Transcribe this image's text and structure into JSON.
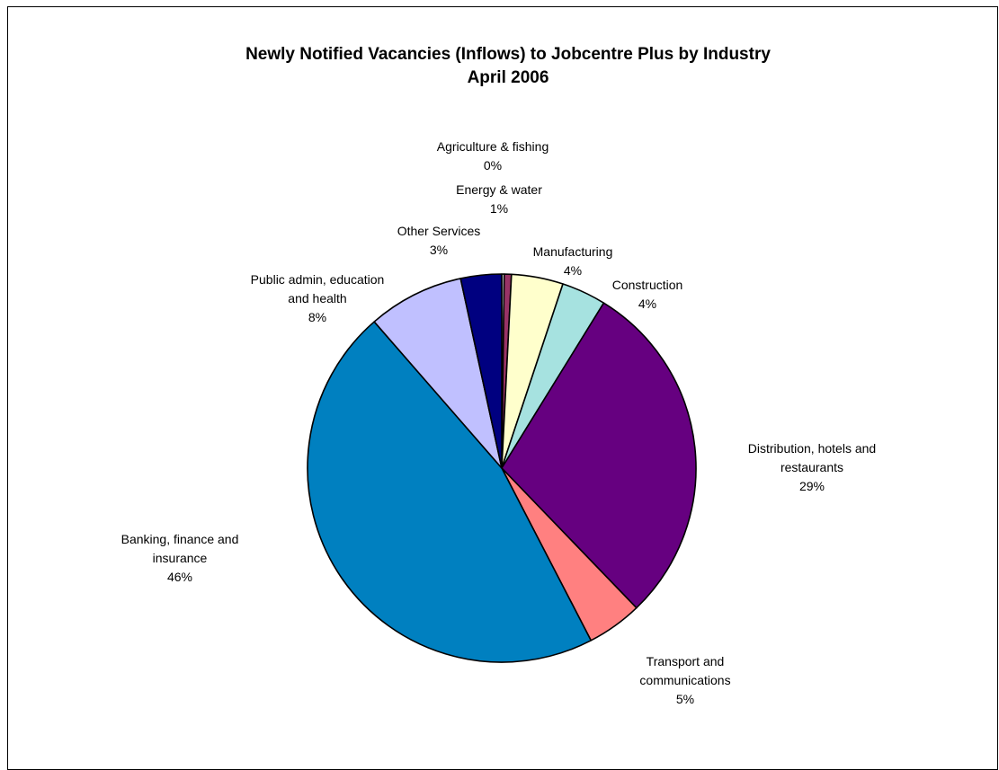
{
  "chart_data": {
    "type": "pie",
    "title": [
      "Newly Notified Vacancies (Inflows) to Jobcentre Plus by Industry",
      "April 2006"
    ],
    "slices": [
      {
        "label_lines": [
          "Agriculture & fishing"
        ],
        "percent_label": "0%",
        "value": 0.2,
        "color": "#FFFFFF"
      },
      {
        "label_lines": [
          "Energy & water"
        ],
        "percent_label": "1%",
        "value": 0.6,
        "color": "#993366"
      },
      {
        "label_lines": [
          "Manufacturing"
        ],
        "percent_label": "4%",
        "value": 4.3,
        "color": "#FFFFCC"
      },
      {
        "label_lines": [
          "Construction"
        ],
        "percent_label": "4%",
        "value": 3.7,
        "color": "#A6E2E0"
      },
      {
        "label_lines": [
          "Distribution, hotels and",
          "restaurants"
        ],
        "percent_label": "29%",
        "value": 29.0,
        "color": "#660080"
      },
      {
        "label_lines": [
          "Transport and",
          "communications"
        ],
        "percent_label": "5%",
        "value": 4.6,
        "color": "#FF8080"
      },
      {
        "label_lines": [
          "Banking, finance and",
          "insurance"
        ],
        "percent_label": "46%",
        "value": 46.2,
        "color": "#0080C0"
      },
      {
        "label_lines": [
          "Public admin, education",
          "and health"
        ],
        "percent_label": "8%",
        "value": 8.0,
        "color": "#C0C0FF"
      },
      {
        "label_lines": [
          "Other Services"
        ],
        "percent_label": "3%",
        "value": 3.4,
        "color": "#000080"
      }
    ],
    "start_angle": "12 o'clock",
    "direction": "clockwise",
    "legend": "none"
  }
}
